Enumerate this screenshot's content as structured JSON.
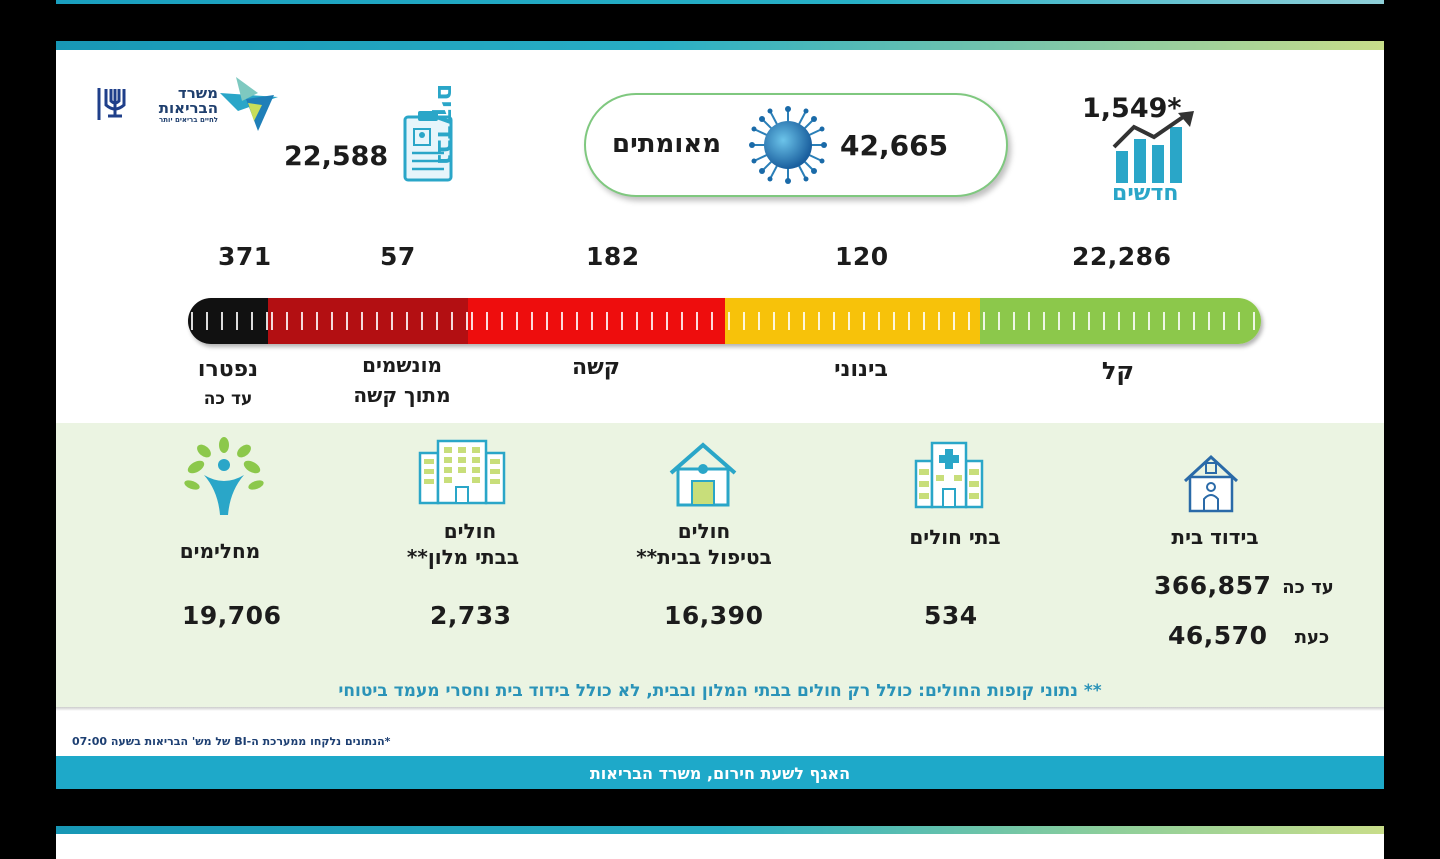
{
  "header": {
    "ministry_name": "משרד הבריאות",
    "ministry_slogan": "לחיים בריאים יותר"
  },
  "summary": {
    "confirmed_label": "מאומתים",
    "confirmed_value": "42,665",
    "new_label": "חדשים",
    "new_value": "1,549*",
    "tested_label": "נבדקים",
    "tested_value": "22,588"
  },
  "severity": {
    "items": [
      {
        "key": "deceased",
        "value": "371",
        "label": "נפטרו",
        "sublabel": "עד כה",
        "color": "#111111"
      },
      {
        "key": "ventilated",
        "value": "57",
        "label": "מונשמים",
        "sublabel": "מתוך קשה",
        "color": "#b30f12"
      },
      {
        "key": "serious",
        "value": "182",
        "label": "קשה",
        "sublabel": "",
        "color": "#ee0d0d"
      },
      {
        "key": "moderate",
        "value": "120",
        "label": "בינוני",
        "sublabel": "",
        "color": "#f7c20a"
      },
      {
        "key": "mild",
        "value": "22,286",
        "label": "קל",
        "sublabel": "",
        "color": "#8cc84b"
      }
    ]
  },
  "locations": {
    "recovered": {
      "label": "מחלימים",
      "value": "19,706",
      "icon": "recovered-person-icon"
    },
    "hotels": {
      "label_line1": "חולים",
      "label_line2": "בבתי מלון**",
      "value": "2,733",
      "icon": "hotel-building-icon"
    },
    "home_care": {
      "label_line1": "חולים",
      "label_line2": "בטיפול בבית**",
      "value": "16,390",
      "icon": "home-care-icon"
    },
    "hospitals": {
      "label": "בתי חולים",
      "value": "534",
      "icon": "hospital-icon"
    },
    "home_isolation": {
      "label": "בידוד בית",
      "so_far_label": "עד כה",
      "so_far_value": "366,857",
      "now_label": "כעת",
      "now_value": "46,570",
      "icon": "home-isolation-icon"
    }
  },
  "footer": {
    "hotel_note": "** נתוני קופות החולים: כולל רק חולים בבתי המלון ובבית, לא כולל בידוד בית וחסרי מעמד ביטוחי",
    "data_source": "*הנתונים נלקחו ממערכת ה-BI של מש' הבריאות בשעה 07:00",
    "department": "האגף לשעת חירום, משרד הבריאות"
  },
  "colors": {
    "accent": "#1ea9c9",
    "green_bg": "#ebf4e2",
    "icon_blue": "#2aa6c8"
  }
}
